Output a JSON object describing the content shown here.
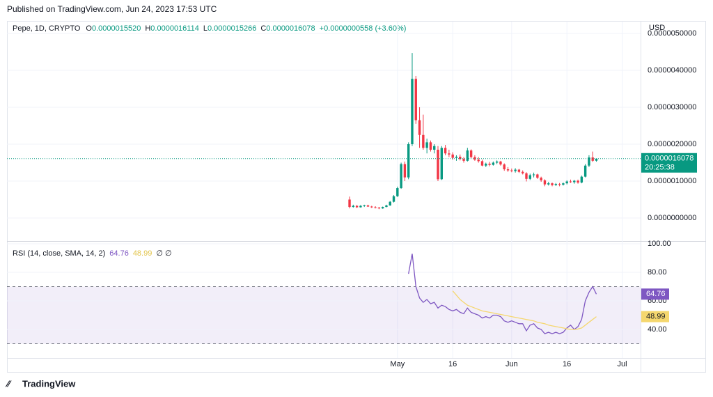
{
  "header": {
    "published": "Published on TradingView.com, Jun 24, 2023 17:53 UTC"
  },
  "chart_data": [
    {
      "type": "candlestick",
      "title": "Pepe, 1D, CRYPTO",
      "currency": "USD",
      "ohlc_legend": [
        {
          "key": "O",
          "value": "0.0000015520"
        },
        {
          "key": "H",
          "value": "0.0000016114"
        },
        {
          "key": "L",
          "value": "0.0000015266"
        },
        {
          "key": "C",
          "value": "0.0000016078"
        }
      ],
      "change": "+0.0000000558 (+3.60%)",
      "last_price_label": "0.0000016078",
      "countdown": "20:25:38",
      "up_color": "#089981",
      "down_color": "#f23645",
      "x": [
        "2023-04-18",
        "2023-04-19",
        "2023-04-20",
        "2023-04-21",
        "2023-04-22",
        "2023-04-23",
        "2023-04-24",
        "2023-04-25",
        "2023-04-26",
        "2023-04-27",
        "2023-04-28",
        "2023-04-29",
        "2023-04-30",
        "2023-05-01",
        "2023-05-02",
        "2023-05-03",
        "2023-05-04",
        "2023-05-05",
        "2023-05-06",
        "2023-05-07",
        "2023-05-08",
        "2023-05-09",
        "2023-05-10",
        "2023-05-11",
        "2023-05-12",
        "2023-05-13",
        "2023-05-14",
        "2023-05-15",
        "2023-05-16",
        "2023-05-17",
        "2023-05-18",
        "2023-05-19",
        "2023-05-20",
        "2023-05-21",
        "2023-05-22",
        "2023-05-23",
        "2023-05-24",
        "2023-05-25",
        "2023-05-26",
        "2023-05-27",
        "2023-05-28",
        "2023-05-29",
        "2023-05-30",
        "2023-05-31",
        "2023-06-01",
        "2023-06-02",
        "2023-06-03",
        "2023-06-04",
        "2023-06-05",
        "2023-06-06",
        "2023-06-07",
        "2023-06-08",
        "2023-06-09",
        "2023-06-10",
        "2023-06-11",
        "2023-06-12",
        "2023-06-13",
        "2023-06-14",
        "2023-06-15",
        "2023-06-16",
        "2023-06-17",
        "2023-06-18",
        "2023-06-19",
        "2023-06-20",
        "2023-06-21",
        "2023-06-22",
        "2023-06-23",
        "2023-06-24"
      ],
      "open": [
        5e-07,
        3e-07,
        3.3e-07,
        2.9e-07,
        3.3e-07,
        3.4e-07,
        3.1e-07,
        2.9e-07,
        2.8e-07,
        2.6e-07,
        3e-07,
        3.4e-07,
        4.4e-07,
        5.9e-07,
        8.1e-07,
        1.46e-06,
        1.1e-06,
        2e-06,
        3.77e-06,
        2.65e-06,
        2.25e-06,
        1.9e-06,
        2.05e-06,
        1.85e-06,
        1.85e-06,
        1.05e-06,
        1.9e-06,
        1.75e-06,
        1.72e-06,
        1.63e-06,
        1.66e-06,
        1.6e-06,
        1.55e-06,
        1.83e-06,
        1.65e-06,
        1.58e-06,
        1.54e-06,
        1.42e-06,
        1.47e-06,
        1.44e-06,
        1.5e-06,
        1.53e-06,
        1.45e-06,
        1.32e-06,
        1.29e-06,
        1.27e-06,
        1.31e-06,
        1.25e-06,
        1.21e-06,
        1.06e-06,
        1.16e-06,
        1.18e-06,
        1.09e-06,
        1.02e-06,
        9.1e-07,
        9.4e-07,
        8.9e-07,
        9.2e-07,
        9e-07,
        9.4e-07,
        9.9e-07,
        9.7e-07,
        1.01e-06,
        9.6e-07,
        1.12e-06,
        1.42e-06,
        1.64e-06,
        1.552e-06
      ],
      "high": [
        5.8e-07,
        3.6e-07,
        3.5e-07,
        3.5e-07,
        3.6e-07,
        3.6e-07,
        3.3e-07,
        3.2e-07,
        3e-07,
        3.1e-07,
        3.6e-07,
        4.6e-07,
        6.2e-07,
        8.5e-07,
        1.5e-06,
        1.53e-06,
        2.05e-06,
        4.47e-06,
        3.85e-06,
        3e-06,
        2.8e-06,
        2.15e-06,
        2.1e-06,
        2e-06,
        1.95e-06,
        1.95e-06,
        1.98e-06,
        1.85e-06,
        1.78e-06,
        1.7e-06,
        1.72e-06,
        1.65e-06,
        1.9e-06,
        1.86e-06,
        1.7e-06,
        1.65e-06,
        1.58e-06,
        1.5e-06,
        1.52e-06,
        1.53e-06,
        1.56e-06,
        1.55e-06,
        1.48e-06,
        1.38e-06,
        1.34e-06,
        1.35e-06,
        1.33e-06,
        1.29e-06,
        1.24e-06,
        1.2e-06,
        1.23e-06,
        1.2e-06,
        1.12e-06,
        1.05e-06,
        9.8e-07,
        9.6e-07,
        9.5e-07,
        9.5e-07,
        9.6e-07,
        1.02e-06,
        1.04e-06,
        1.03e-06,
        1.04e-06,
        1.15e-06,
        1.46e-06,
        1.7e-06,
        1.8e-06,
        1.6114e-06
      ],
      "low": [
        2.6e-07,
        2.8e-07,
        2.7e-07,
        2.8e-07,
        3e-07,
        3e-07,
        2.7e-07,
        2.6e-07,
        2.4e-07,
        2.5e-07,
        2.9e-07,
        3.3e-07,
        4.2e-07,
        5.7e-07,
        7.9e-07,
        1e-06,
        1.05e-06,
        1.95e-06,
        2.55e-06,
        1.9e-06,
        1.85e-06,
        1.75e-06,
        1.8e-06,
        1.75e-06,
        1e-06,
        1.03e-06,
        1.7e-06,
        1.65e-06,
        1.58e-06,
        1.55e-06,
        1.56e-06,
        1.5e-06,
        1.53e-06,
        1.62e-06,
        1.55e-06,
        1.5e-06,
        1.4e-06,
        1.38e-06,
        1.4e-06,
        1.42e-06,
        1.46e-06,
        1.42e-06,
        1.28e-06,
        1.25e-06,
        1.24e-06,
        1.23e-06,
        1.22e-06,
        1.18e-06,
        9.9e-07,
        1.03e-06,
        1.1e-06,
        1.06e-06,
        9.8e-07,
        8.6e-07,
        8.8e-07,
        8.6e-07,
        8.7e-07,
        8.6e-07,
        8.8e-07,
        9.1e-07,
        9.5e-07,
        9.3e-07,
        9.3e-07,
        9.4e-07,
        1.1e-06,
        1.38e-06,
        1.52e-06,
        1.5266e-06
      ],
      "close": [
        3e-07,
        3.3e-07,
        2.9e-07,
        3.3e-07,
        3.4e-07,
        3.1e-07,
        2.9e-07,
        2.8e-07,
        2.6e-07,
        3e-07,
        3.4e-07,
        4.4e-07,
        5.9e-07,
        8.1e-07,
        1.46e-06,
        1.1e-06,
        2e-06,
        3.77e-06,
        2.65e-06,
        2.25e-06,
        1.9e-06,
        2.05e-06,
        1.85e-06,
        1.95e-06,
        1.05e-06,
        1.9e-06,
        1.75e-06,
        1.72e-06,
        1.63e-06,
        1.66e-06,
        1.6e-06,
        1.55e-06,
        1.83e-06,
        1.65e-06,
        1.58e-06,
        1.54e-06,
        1.42e-06,
        1.47e-06,
        1.44e-06,
        1.5e-06,
        1.53e-06,
        1.45e-06,
        1.32e-06,
        1.29e-06,
        1.27e-06,
        1.31e-06,
        1.25e-06,
        1.21e-06,
        1.06e-06,
        1.16e-06,
        1.18e-06,
        1.09e-06,
        1.02e-06,
        9.1e-07,
        9.4e-07,
        8.9e-07,
        9.2e-07,
        9e-07,
        9.4e-07,
        9.9e-07,
        9.7e-07,
        1.01e-06,
        9.6e-07,
        1.12e-06,
        1.42e-06,
        1.64e-06,
        1.55e-06,
        1.6078e-06
      ],
      "xlim": [
        "2023-01-15",
        "2023-07-06"
      ],
      "xticks": [
        {
          "value": "2023-05-01",
          "label": "May"
        },
        {
          "value": "2023-05-16",
          "label": "16"
        },
        {
          "value": "2023-06-01",
          "label": "Jun"
        },
        {
          "value": "2023-06-16",
          "label": "16"
        },
        {
          "value": "2023-07-01",
          "label": "Jul"
        }
      ],
      "ylim": [
        -6.04e-07,
        5.057e-06
      ],
      "yticks": [
        {
          "value": 0,
          "label": "0.0000000000"
        },
        {
          "value": 1e-06,
          "label": "0.0000010000"
        },
        {
          "value": 2e-06,
          "label": "0.0000020000"
        },
        {
          "value": 3e-06,
          "label": "0.0000030000"
        },
        {
          "value": 4e-06,
          "label": "0.0000040000"
        },
        {
          "value": 5e-06,
          "label": "0.0000050000"
        }
      ],
      "grid": true
    },
    {
      "type": "line",
      "title": "RSI (14, close, SMA, 14, 2)",
      "null_icons": "∅  ∅",
      "series": [
        {
          "color": "#7e57c2",
          "values": [
            null,
            null,
            null,
            null,
            null,
            null,
            null,
            null,
            null,
            null,
            null,
            null,
            null,
            null,
            null,
            null,
            79,
            93,
            70,
            62,
            59,
            61,
            58,
            59,
            55,
            57,
            56,
            54,
            53,
            54,
            52,
            51,
            55,
            52,
            51,
            50,
            48,
            49,
            48,
            50,
            50,
            49,
            46,
            45,
            46,
            45,
            44,
            44,
            39,
            43,
            44,
            41,
            40,
            37,
            38,
            37,
            38,
            37,
            38,
            41,
            43,
            40,
            42,
            47,
            60,
            66,
            70,
            64.76
          ]
        },
        {
          "color": "#f5d76e",
          "values": [
            null,
            null,
            null,
            null,
            null,
            null,
            null,
            null,
            null,
            null,
            null,
            null,
            null,
            null,
            null,
            null,
            null,
            null,
            null,
            null,
            null,
            null,
            null,
            null,
            null,
            null,
            null,
            null,
            67,
            64,
            61,
            59,
            57,
            56,
            55,
            54,
            53,
            52.5,
            52,
            51.5,
            51,
            50.5,
            50,
            49.5,
            49,
            48.5,
            48,
            47.5,
            47,
            46.5,
            46,
            45,
            44.5,
            44,
            43,
            42.5,
            42,
            41.5,
            41,
            40.5,
            40,
            40,
            40.3,
            41,
            43,
            45,
            47,
            48.99
          ]
        }
      ],
      "bands": [
        70,
        30
      ],
      "ylim": [
        19.5,
        101
      ],
      "yticks": [
        {
          "value": 40,
          "label": "40.00"
        },
        {
          "value": 60,
          "label": "60.00"
        },
        {
          "value": 80,
          "label": "80.00"
        },
        {
          "value": 100,
          "label": "100.00"
        }
      ],
      "grid": true
    }
  ],
  "footer": {
    "brand": "TradingView"
  }
}
